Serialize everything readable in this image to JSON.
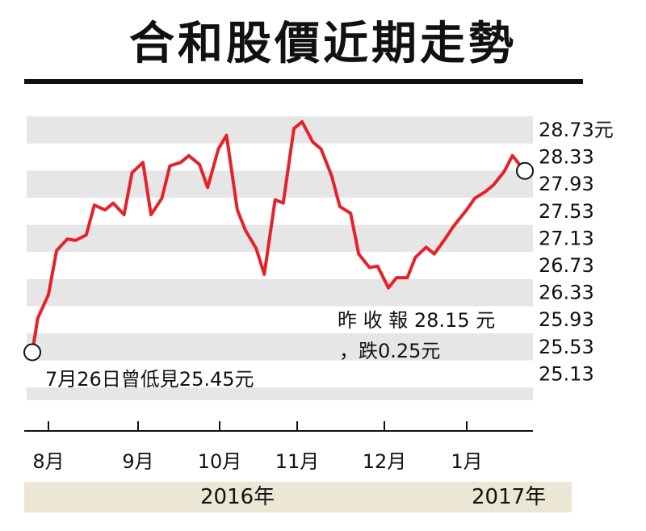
{
  "title": "合和股價近期走勢",
  "chart_data": {
    "type": "line",
    "title": "合和股價近期走勢",
    "ylim": [
      24.93,
      28.93
    ],
    "y_ticks": [
      28.73,
      28.33,
      27.93,
      27.53,
      27.13,
      26.73,
      26.33,
      25.93,
      25.53,
      25.13
    ],
    "y_unit": "元",
    "x_month_labels": [
      "8月",
      "9月",
      "10月",
      "11月",
      "12月",
      "1月"
    ],
    "year_labels": [
      "2016年",
      "2017年"
    ],
    "grid": "alternating horizontal bands",
    "series": [
      {
        "color": "#e5222a",
        "x": [
          "2016-07-26",
          "2016-07-28",
          "2016-08-01",
          "2016-08-04",
          "2016-08-08",
          "2016-08-11",
          "2016-08-15",
          "2016-08-18",
          "2016-08-22",
          "2016-08-25",
          "2016-08-29",
          "2016-09-01",
          "2016-09-05",
          "2016-09-08",
          "2016-09-12",
          "2016-09-15",
          "2016-09-19",
          "2016-09-22",
          "2016-09-26",
          "2016-09-29",
          "2016-10-03",
          "2016-10-06",
          "2016-10-10",
          "2016-10-13",
          "2016-10-17",
          "2016-10-20",
          "2016-10-24",
          "2016-10-27",
          "2016-10-31",
          "2016-11-03",
          "2016-11-07",
          "2016-11-10",
          "2016-11-14",
          "2016-11-17",
          "2016-11-21",
          "2016-11-24",
          "2016-11-28",
          "2016-12-01",
          "2016-12-05",
          "2016-12-08",
          "2016-12-12",
          "2016-12-15",
          "2016-12-19",
          "2016-12-22",
          "2016-12-26",
          "2016-12-29",
          "2017-01-03",
          "2017-01-06",
          "2017-01-10",
          "2017-01-13",
          "2017-01-17",
          "2017-01-20",
          "2017-01-24"
        ],
        "y": [
          25.45,
          25.95,
          26.3,
          26.95,
          27.12,
          27.1,
          27.18,
          27.62,
          27.55,
          27.65,
          27.48,
          28.1,
          28.25,
          27.48,
          27.72,
          28.2,
          28.25,
          28.35,
          28.22,
          27.88,
          28.45,
          28.65,
          27.55,
          27.25,
          26.98,
          26.6,
          27.7,
          27.65,
          28.75,
          28.85,
          28.55,
          28.45,
          28.05,
          27.6,
          27.5,
          26.9,
          26.7,
          26.72,
          26.4,
          26.55,
          26.55,
          26.85,
          27.0,
          26.9,
          27.12,
          27.3,
          27.55,
          27.72,
          27.82,
          27.92,
          28.12,
          28.35,
          28.15
        ]
      }
    ],
    "annotations": [
      {
        "text": "7月26日曾低見25.45元",
        "x": "2016-07-26",
        "y": 25.45
      },
      {
        "text": "昨收報28.15元",
        "x": "2017-01-24",
        "y": 28.15
      },
      {
        "text": "，跌0.25元"
      }
    ]
  },
  "annotations": {
    "low_label": "7月26日曾低見25.45元",
    "close_label": "昨 收 報 28.15 元",
    "change_label": "，跌0.25元"
  },
  "years": {
    "first": "2016年",
    "second": "2017年"
  }
}
